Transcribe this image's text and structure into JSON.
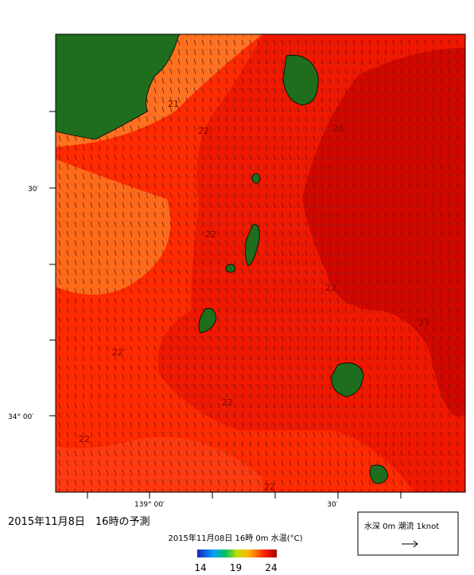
{
  "title": "2015年11月8日　16時の予測",
  "colorbar": {
    "caption": "2015年11月08日 16時 0m 水温(°C)",
    "ticks": [
      14,
      19,
      24
    ]
  },
  "axes": {
    "lat_labels": [
      "30′",
      "34° 00′"
    ],
    "lon_labels": [
      "139° 00′",
      "30′"
    ]
  },
  "contour_labels": [
    21,
    22,
    23,
    22,
    22,
    23,
    22,
    22,
    22,
    22
  ],
  "legend": "水深 0m 潮流 1knot"
}
